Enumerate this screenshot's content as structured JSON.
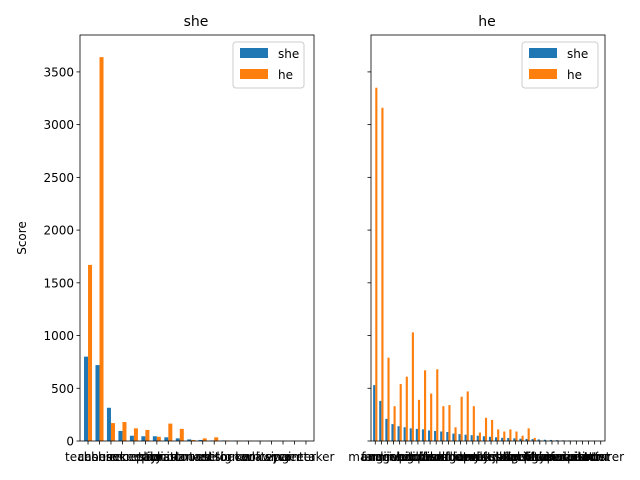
{
  "colors": {
    "she": "#1f77b4",
    "he": "#ff7f0e"
  },
  "chart_data": [
    {
      "type": "bar",
      "title": "she",
      "ylabel": "Score",
      "xlabel": "",
      "ylim": [
        0,
        3850
      ],
      "yticks": [
        0,
        500,
        1000,
        1500,
        2000,
        2500,
        3000,
        3500
      ],
      "legend_position": "top-right",
      "categories": [
        "teacher",
        "cashier",
        "nurse",
        "housekeeper",
        "secretary",
        "receptionist",
        "stylist",
        "librarian",
        "accountant",
        "dancer",
        "counselor",
        "editor",
        "designer",
        "baker",
        "cook",
        "writer",
        "lawyer",
        "singer",
        "painter",
        "caretaker"
      ],
      "visible_xtick_labels": [
        "teacher",
        "cashier",
        "housekeeper",
        "secretary",
        "receptionist",
        "stylist",
        "librarian",
        "accountant",
        "dancer",
        "counselor",
        "editor",
        "designer",
        "baker",
        "cook",
        "writer",
        "lawyer",
        "singer",
        "painter",
        "caretaker"
      ],
      "series": [
        {
          "name": "she",
          "values": [
            800,
            720,
            315,
            95,
            50,
            45,
            45,
            35,
            25,
            15,
            10,
            5,
            5,
            3,
            3,
            2,
            2,
            2,
            1,
            1
          ]
        },
        {
          "name": "he",
          "values": [
            1670,
            3640,
            170,
            180,
            120,
            105,
            40,
            165,
            115,
            10,
            25,
            35,
            5,
            3,
            3,
            2,
            2,
            2,
            1,
            1
          ]
        }
      ]
    },
    {
      "type": "bar",
      "title": "he",
      "ylabel": "",
      "xlabel": "",
      "ylim": [
        0,
        3850
      ],
      "yticks": [
        0,
        500,
        1000,
        1500,
        2000,
        2500,
        3000,
        3500
      ],
      "legend_position": "top-right",
      "categories": [
        "manager",
        "farmer",
        "engineer",
        "driver",
        "mechanic",
        "janitor",
        "pilot",
        "builder",
        "guard",
        "officer",
        "chef",
        "plumber",
        "soldier",
        "surgeon",
        "doctor",
        "scientist",
        "lawyer",
        "analyst",
        "developer",
        "professor",
        "banker",
        "architect",
        "judge",
        "sheriff",
        "carpenter",
        "laborer",
        "firefighter",
        "chief",
        "mover",
        "physician",
        "economist",
        "supervisor",
        "inventor",
        "investor",
        "director",
        "painter",
        "artist",
        "lecturer"
      ],
      "visible_xtick_labels": [
        "manager",
        "farmer",
        "engineer",
        "driver",
        "mechanic",
        "janitor",
        "pilot",
        "builder",
        "guard",
        "officer",
        "chef",
        "plumber",
        "soldier",
        "surgeon",
        "doctor",
        "scientist",
        "lawyer",
        "analyst",
        "developer",
        "professor",
        "banker",
        "architect",
        "judge",
        "sheriff",
        "carpenter",
        "laborer",
        "firefighter",
        "chief",
        "mover",
        "physician",
        "economist",
        "supervisor",
        "inventor",
        "investor",
        "director",
        "painter",
        "artist",
        "lecturer"
      ],
      "series": [
        {
          "name": "she",
          "values": [
            530,
            380,
            210,
            160,
            140,
            130,
            120,
            115,
            110,
            100,
            95,
            90,
            85,
            70,
            65,
            60,
            55,
            50,
            45,
            40,
            35,
            30,
            28,
            25,
            22,
            20,
            18,
            15,
            12,
            10,
            8,
            6,
            5,
            4,
            3,
            2,
            2,
            1
          ]
        },
        {
          "name": "he",
          "values": [
            3350,
            3160,
            790,
            330,
            540,
            610,
            1030,
            390,
            670,
            450,
            680,
            330,
            340,
            130,
            420,
            470,
            330,
            80,
            220,
            200,
            110,
            90,
            110,
            90,
            50,
            120,
            30,
            5,
            3,
            3,
            2,
            2,
            2,
            1,
            1,
            1,
            1,
            1
          ]
        }
      ]
    }
  ]
}
